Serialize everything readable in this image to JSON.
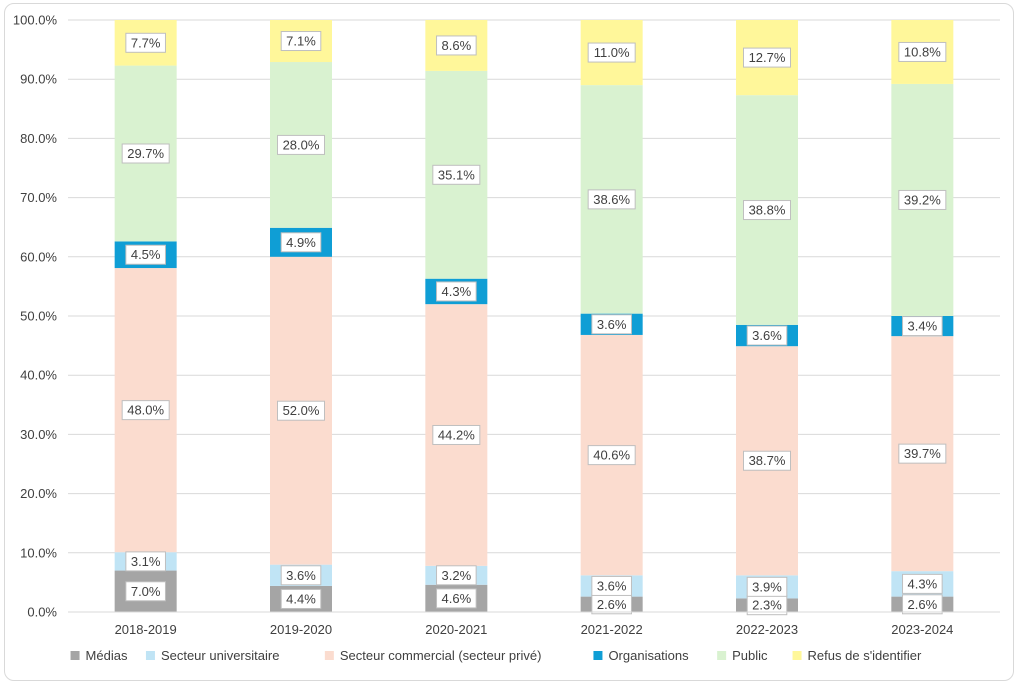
{
  "chart_data": {
    "type": "bar",
    "stacked": true,
    "normalized": true,
    "categories": [
      "2018-2019",
      "2019-2020",
      "2020-2021",
      "2021-2022",
      "2022-2023",
      "2023-2024"
    ],
    "series": [
      {
        "name": "Médias",
        "color": "#a5a5a5",
        "values": [
          7.0,
          4.4,
          4.6,
          2.6,
          2.3,
          2.6
        ],
        "labels": [
          "7.0%",
          "4.4%",
          "4.6%",
          "2.6%",
          "2.3%",
          "2.6%"
        ]
      },
      {
        "name": "Secteur universitaire",
        "color": "#c0e4f5",
        "values": [
          3.1,
          3.6,
          3.2,
          3.6,
          3.9,
          4.3
        ],
        "labels": [
          "3.1%",
          "3.6%",
          "3.2%",
          "3.6%",
          "3.9%",
          "4.3%"
        ]
      },
      {
        "name": "Secteur commercial (secteur privé)",
        "color": "#fbdccf",
        "values": [
          48.0,
          52.0,
          44.2,
          40.6,
          38.7,
          39.7
        ],
        "labels": [
          "48.0%",
          "52.0%",
          "44.2%",
          "40.6%",
          "38.7%",
          "39.7%"
        ]
      },
      {
        "name": "Organisations",
        "color": "#0f9ed5",
        "values": [
          4.5,
          4.9,
          4.3,
          3.6,
          3.6,
          3.4
        ],
        "labels": [
          "4.5%",
          "4.9%",
          "4.3%",
          "3.6%",
          "3.6%",
          "3.4%"
        ]
      },
      {
        "name": "Public",
        "color": "#d9f2d0",
        "values": [
          29.7,
          28.0,
          35.1,
          38.6,
          38.8,
          39.2
        ],
        "labels": [
          "29.7%",
          "28.0%",
          "35.1%",
          "38.6%",
          "38.8%",
          "39.2%"
        ]
      },
      {
        "name": "Refus de s'identifier",
        "color": "#fff79a",
        "values": [
          7.7,
          7.1,
          8.6,
          11.0,
          12.7,
          10.8
        ],
        "labels": [
          "7.7%",
          "7.1%",
          "8.6%",
          "11.0%",
          "12.7%",
          "10.8%"
        ]
      }
    ],
    "y_ticks": [
      "0.0%",
      "10.0%",
      "20.0%",
      "30.0%",
      "40.0%",
      "50.0%",
      "60.0%",
      "70.0%",
      "80.0%",
      "90.0%",
      "100.0%"
    ],
    "ylim": [
      0,
      100
    ],
    "title": "",
    "xlabel": "",
    "ylabel": "",
    "grid": true,
    "legend_position": "bottom"
  }
}
